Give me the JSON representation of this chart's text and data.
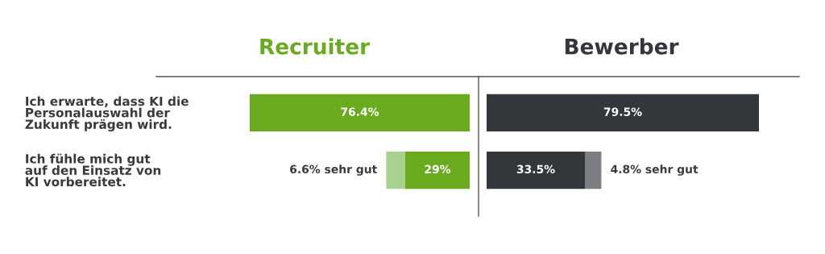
{
  "chart_data": [
    {
      "type": "bar",
      "title": "Recruiter",
      "orientation": "horizontal",
      "stacked": true,
      "tick_labels": "y",
      "categories": [
        "Ich erwarte, dass KI die\nPersonalauswahl der\nZukunft prägen wird.",
        "Ich fühle mich gut\nauf den Einsatz von\nKI vorbereitet."
      ],
      "series": [
        {
          "color": "#6aaa1e",
          "values": [
            76.4,
            22.4
          ],
          "value_labels": [
            "76.4%",
            null
          ]
        },
        {
          "color": "#a9d18e",
          "values": [
            null,
            6.6
          ],
          "value_labels": [
            null,
            "6.6% sehr gut"
          ]
        }
      ],
      "totals": [
        null,
        "29%"
      ]
    },
    {
      "type": "bar",
      "title": "Bewerber",
      "orientation": "horizontal",
      "stacked": true,
      "tick_labels": false,
      "categories": [
        null,
        null
      ],
      "series": [
        {
          "color": "#33363b",
          "values": [
            79.5,
            28.7
          ],
          "value_labels": [
            "79.5%",
            null
          ]
        },
        {
          "color": "#7d7f82",
          "values": [
            null,
            4.8
          ],
          "value_labels": [
            null,
            "4.8% sehr gut"
          ]
        }
      ],
      "totals": [
        null,
        "33.5%"
      ]
    }
  ]
}
